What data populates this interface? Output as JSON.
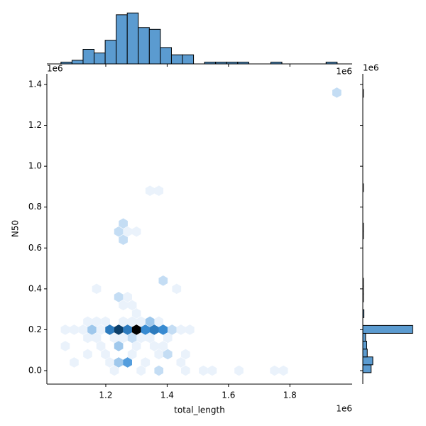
{
  "chart_data": {
    "type": "hexbin",
    "x_label": "total_length",
    "y_label": "N50",
    "x_offset": "1e6",
    "y_offset": "1e6",
    "top_x_offset": "1e6",
    "right_y_offset": "1e6",
    "xlim": [
      1.008,
      2.003
    ],
    "ylim": [
      -0.066,
      1.452
    ],
    "xticks": [
      1.2,
      1.4,
      1.6,
      1.8
    ],
    "yticks": [
      {
        "value": 0,
        "label": "0.0"
      },
      0.2,
      0.4,
      0.6,
      0.8,
      {
        "value": 1,
        "label": "1.0"
      },
      1.2,
      1.4
    ],
    "cmap": [
      "#eaf2fb",
      "#3a8fd8",
      "#0e4a7c",
      "#000000"
    ],
    "hexbins": {
      "x": [
        1.068,
        1.097,
        1.126,
        1.155,
        1.184,
        1.213,
        1.242,
        1.271,
        1.3,
        1.329,
        1.358,
        1.387,
        1.416,
        1.445,
        1.474,
        1.141,
        1.17,
        1.199,
        1.257,
        1.286,
        1.315,
        1.344,
        1.373,
        1.141,
        1.17,
        1.228,
        1.257,
        1.286,
        1.315,
        1.344,
        1.402,
        1.068,
        1.184,
        1.242,
        1.3,
        1.358,
        1.387,
        1.141,
        1.199,
        1.286,
        1.373,
        1.402,
        1.46,
        1.097,
        1.213,
        1.242,
        1.271,
        1.329,
        1.445,
        1.228,
        1.315,
        1.373,
        1.46,
        1.518,
        1.547,
        1.634,
        1.75,
        1.779,
        1.17,
        1.431,
        1.387,
        1.242,
        1.271,
        1.257,
        1.286,
        1.3,
        1.242,
        1.271,
        1.3,
        1.257,
        1.257,
        1.344,
        1.373,
        1.953
      ],
      "y": [
        0.2,
        0.2,
        0.2,
        0.2,
        0.2,
        0.2,
        0.2,
        0.2,
        0.2,
        0.2,
        0.2,
        0.2,
        0.2,
        0.2,
        0.2,
        0.24,
        0.24,
        0.24,
        0.24,
        0.24,
        0.24,
        0.24,
        0.24,
        0.16,
        0.16,
        0.16,
        0.16,
        0.16,
        0.16,
        0.16,
        0.16,
        0.12,
        0.12,
        0.12,
        0.12,
        0.12,
        0.12,
        0.08,
        0.08,
        0.08,
        0.08,
        0.08,
        0.08,
        0.04,
        0.04,
        0.04,
        0.04,
        0.04,
        0.04,
        0,
        0,
        0,
        0,
        0,
        0,
        0,
        0,
        0,
        0.4,
        0.4,
        0.44,
        0.36,
        0.36,
        0.32,
        0.32,
        0.28,
        0.68,
        0.68,
        0.68,
        0.72,
        0.64,
        0.88,
        0.88,
        1.36
      ],
      "counts": [
        1,
        1,
        1,
        3,
        1,
        7,
        11,
        7,
        15,
        6,
        7,
        6,
        2,
        1,
        1,
        1,
        1,
        1,
        1,
        1,
        1,
        3,
        1,
        1,
        1,
        1,
        1,
        2,
        1,
        1,
        1,
        1,
        1,
        3,
        1,
        1,
        1,
        1,
        1,
        1,
        1,
        2,
        1,
        1,
        1,
        3,
        5,
        1,
        1,
        1,
        1,
        2,
        1,
        1,
        1,
        1,
        1,
        1,
        1,
        1,
        2,
        2,
        1,
        1,
        1,
        1,
        2,
        1,
        1,
        2,
        2,
        1,
        1,
        2
      ]
    },
    "hist_color": "#5b9bd0",
    "x_hist": {
      "bins": [
        1.054,
        1.09,
        1.126,
        1.162,
        1.198,
        1.234,
        1.27,
        1.306,
        1.342,
        1.378,
        1.414,
        1.45,
        1.486,
        1.522,
        1.558,
        1.594,
        1.63,
        1.666,
        1.702,
        1.738,
        1.774,
        1.81,
        1.846,
        1.882,
        1.918,
        1.954
      ],
      "counts": [
        1,
        2,
        8,
        6,
        13,
        27,
        28,
        20,
        19,
        9,
        5,
        5,
        0,
        1,
        1,
        1,
        1,
        0,
        0,
        1,
        0,
        0,
        0,
        0,
        1
      ],
      "ylim": [
        0,
        32
      ]
    },
    "y_hist": {
      "bins": [
        -0.01,
        0.0285,
        0.067,
        0.1055,
        0.144,
        0.1825,
        0.221,
        0.2595,
        0.298,
        0.3365,
        0.375,
        0.4135,
        0.452,
        0.4905,
        0.529,
        0.5675,
        0.606,
        0.6445,
        0.683,
        0.7215,
        0.76,
        0.7985,
        0.837,
        0.8755,
        0.914,
        0.9525,
        0.991,
        1.0295,
        1.068,
        1.1065,
        1.145,
        1.1835,
        1.222,
        1.2605,
        1.299,
        1.3375,
        1.376,
        1.4145
      ],
      "counts": [
        15,
        18,
        8,
        7,
        5,
        90,
        0,
        2,
        0,
        1,
        1,
        1,
        0,
        0,
        0,
        0,
        0,
        1,
        1,
        0,
        0,
        0,
        0,
        1,
        0,
        0,
        0,
        0,
        0,
        0,
        0,
        0,
        0,
        0,
        0,
        1,
        0
      ],
      "xlim": [
        0,
        105
      ]
    }
  }
}
